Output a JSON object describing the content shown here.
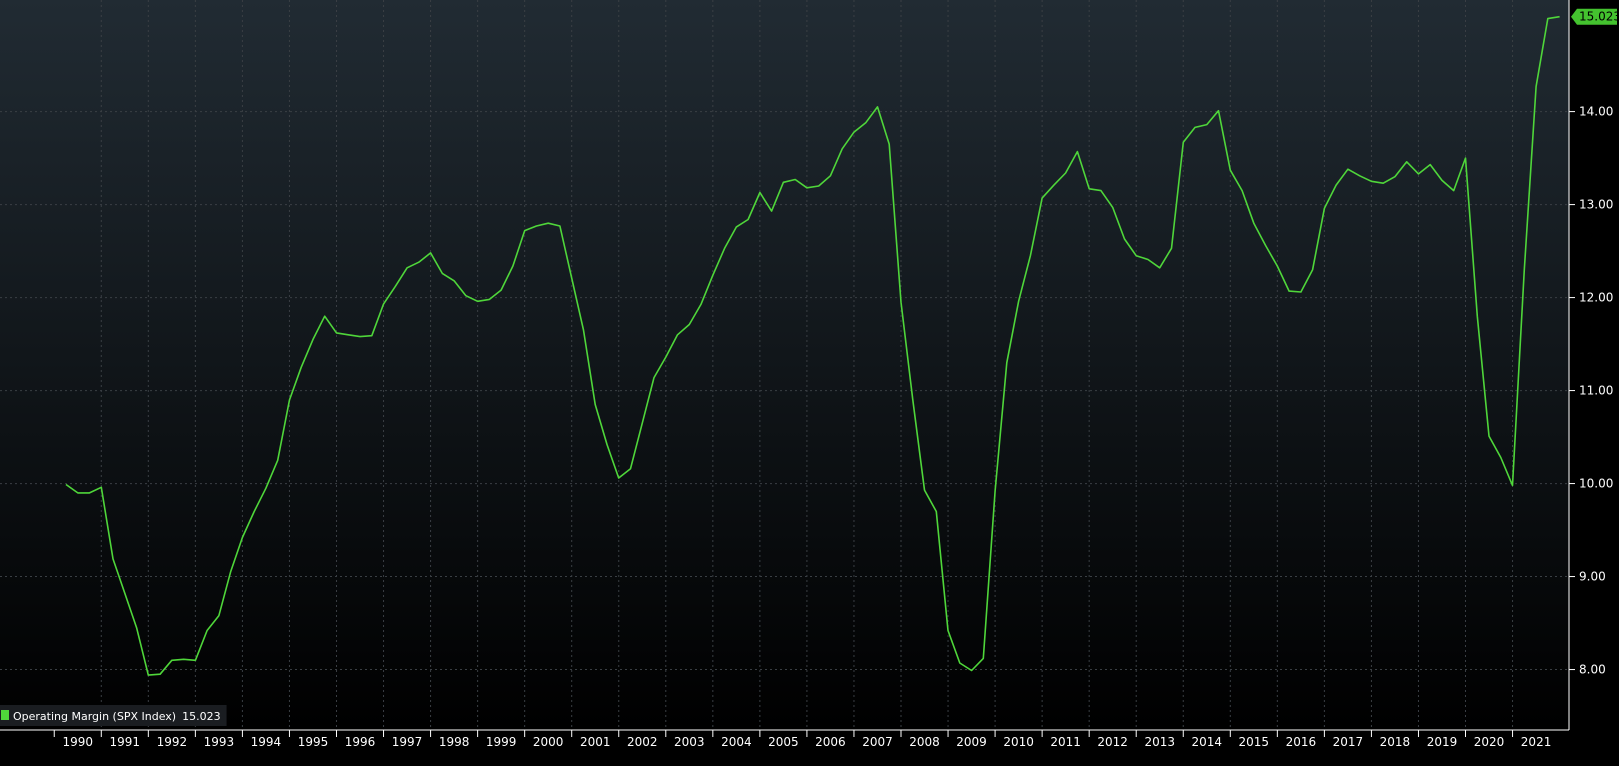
{
  "colors": {
    "background_top": "#212b33",
    "background_bottom": "#000000",
    "series_line": "#4fd63a",
    "grid": "#3a3f44",
    "axis_text": "#ffffff",
    "last_value_badge": "#44c22f",
    "last_value_text": "#000000"
  },
  "chart_data": {
    "type": "line",
    "xlim": [
      1990,
      2021.95
    ],
    "ylim": [
      7.35,
      15.2
    ],
    "grid": true,
    "legend_placement": "bottom-left",
    "y_ticks": [
      {
        "value": 8,
        "label": "8.00"
      },
      {
        "value": 9,
        "label": "9.00"
      },
      {
        "value": 10,
        "label": "10.00"
      },
      {
        "value": 11,
        "label": "11.00"
      },
      {
        "value": 12,
        "label": "12.00"
      },
      {
        "value": 13,
        "label": "13.00"
      },
      {
        "value": 14,
        "label": "14.00"
      }
    ],
    "x_ticks": [
      "1990",
      "1991",
      "1992",
      "1993",
      "1994",
      "1995",
      "1996",
      "1997",
      "1998",
      "1999",
      "2000",
      "2001",
      "2002",
      "2003",
      "2004",
      "2005",
      "2006",
      "2007",
      "2008",
      "2009",
      "2010",
      "2011",
      "2012",
      "2013",
      "2014",
      "2015",
      "2016",
      "2017",
      "2018",
      "2019",
      "2020",
      "2021"
    ],
    "last_value_label": "15.023",
    "series": [
      {
        "name": "Operating Margin (SPX Index)",
        "last_value": "15.023",
        "points": [
          [
            1990.0,
            9.99
          ],
          [
            1990.25,
            9.9
          ],
          [
            1990.5,
            9.9
          ],
          [
            1990.75,
            9.96
          ],
          [
            1991.0,
            9.19
          ],
          [
            1991.25,
            8.82
          ],
          [
            1991.5,
            8.45
          ],
          [
            1991.75,
            7.94
          ],
          [
            1992.0,
            7.95
          ],
          [
            1992.25,
            8.1
          ],
          [
            1992.5,
            8.11
          ],
          [
            1992.75,
            8.1
          ],
          [
            1993.0,
            8.42
          ],
          [
            1993.25,
            8.58
          ],
          [
            1993.5,
            9.05
          ],
          [
            1993.75,
            9.42
          ],
          [
            1994.0,
            9.7
          ],
          [
            1994.25,
            9.95
          ],
          [
            1994.5,
            10.25
          ],
          [
            1994.75,
            10.9
          ],
          [
            1995.0,
            11.25
          ],
          [
            1995.25,
            11.55
          ],
          [
            1995.5,
            11.8
          ],
          [
            1995.75,
            11.62
          ],
          [
            1996.0,
            11.6
          ],
          [
            1996.25,
            11.58
          ],
          [
            1996.5,
            11.59
          ],
          [
            1996.75,
            11.93
          ],
          [
            1997.0,
            12.12
          ],
          [
            1997.25,
            12.32
          ],
          [
            1997.5,
            12.38
          ],
          [
            1997.75,
            12.48
          ],
          [
            1998.0,
            12.26
          ],
          [
            1998.25,
            12.18
          ],
          [
            1998.5,
            12.02
          ],
          [
            1998.75,
            11.96
          ],
          [
            1999.0,
            11.98
          ],
          [
            1999.25,
            12.08
          ],
          [
            1999.5,
            12.34
          ],
          [
            1999.75,
            12.72
          ],
          [
            2000.0,
            12.77
          ],
          [
            2000.25,
            12.8
          ],
          [
            2000.5,
            12.77
          ],
          [
            2000.75,
            12.21
          ],
          [
            2001.0,
            11.65
          ],
          [
            2001.25,
            10.85
          ],
          [
            2001.5,
            10.42
          ],
          [
            2001.75,
            10.06
          ],
          [
            2002.0,
            10.16
          ],
          [
            2002.25,
            10.65
          ],
          [
            2002.5,
            11.14
          ],
          [
            2002.75,
            11.36
          ],
          [
            2003.0,
            11.6
          ],
          [
            2003.25,
            11.71
          ],
          [
            2003.5,
            11.93
          ],
          [
            2003.75,
            12.24
          ],
          [
            2004.0,
            12.53
          ],
          [
            2004.25,
            12.76
          ],
          [
            2004.5,
            12.84
          ],
          [
            2004.75,
            13.13
          ],
          [
            2005.0,
            12.93
          ],
          [
            2005.25,
            13.24
          ],
          [
            2005.5,
            13.27
          ],
          [
            2005.75,
            13.18
          ],
          [
            2006.0,
            13.2
          ],
          [
            2006.25,
            13.31
          ],
          [
            2006.5,
            13.6
          ],
          [
            2006.75,
            13.78
          ],
          [
            2007.0,
            13.88
          ],
          [
            2007.25,
            14.05
          ],
          [
            2007.5,
            13.65
          ],
          [
            2007.75,
            11.95
          ],
          [
            2008.0,
            10.9
          ],
          [
            2008.25,
            9.93
          ],
          [
            2008.5,
            9.7
          ],
          [
            2008.75,
            8.42
          ],
          [
            2009.0,
            8.07
          ],
          [
            2009.25,
            7.99
          ],
          [
            2009.5,
            8.12
          ],
          [
            2009.75,
            9.92
          ],
          [
            2010.0,
            11.3
          ],
          [
            2010.25,
            11.96
          ],
          [
            2010.5,
            12.45
          ],
          [
            2010.75,
            13.07
          ],
          [
            2011.0,
            13.21
          ],
          [
            2011.25,
            13.34
          ],
          [
            2011.5,
            13.57
          ],
          [
            2011.75,
            13.17
          ],
          [
            2012.0,
            13.15
          ],
          [
            2012.25,
            12.97
          ],
          [
            2012.5,
            12.63
          ],
          [
            2012.75,
            12.45
          ],
          [
            2013.0,
            12.41
          ],
          [
            2013.25,
            12.32
          ],
          [
            2013.5,
            12.53
          ],
          [
            2013.75,
            13.67
          ],
          [
            2014.0,
            13.83
          ],
          [
            2014.25,
            13.86
          ],
          [
            2014.5,
            14.01
          ],
          [
            2014.75,
            13.37
          ],
          [
            2015.0,
            13.15
          ],
          [
            2015.25,
            12.8
          ],
          [
            2015.5,
            12.56
          ],
          [
            2015.75,
            12.34
          ],
          [
            2016.0,
            12.07
          ],
          [
            2016.25,
            12.06
          ],
          [
            2016.5,
            12.3
          ],
          [
            2016.75,
            12.96
          ],
          [
            2017.0,
            13.21
          ],
          [
            2017.25,
            13.38
          ],
          [
            2017.5,
            13.31
          ],
          [
            2017.75,
            13.25
          ],
          [
            2018.0,
            13.23
          ],
          [
            2018.25,
            13.3
          ],
          [
            2018.5,
            13.46
          ],
          [
            2018.75,
            13.33
          ],
          [
            2019.0,
            13.43
          ],
          [
            2019.25,
            13.26
          ],
          [
            2019.5,
            13.15
          ],
          [
            2019.75,
            13.5
          ],
          [
            2020.0,
            11.8
          ],
          [
            2020.25,
            10.51
          ],
          [
            2020.5,
            10.28
          ],
          [
            2020.75,
            9.98
          ],
          [
            2021.0,
            12.3
          ],
          [
            2021.25,
            14.27
          ],
          [
            2021.5,
            15.0
          ],
          [
            2021.75,
            15.02
          ]
        ]
      }
    ]
  }
}
